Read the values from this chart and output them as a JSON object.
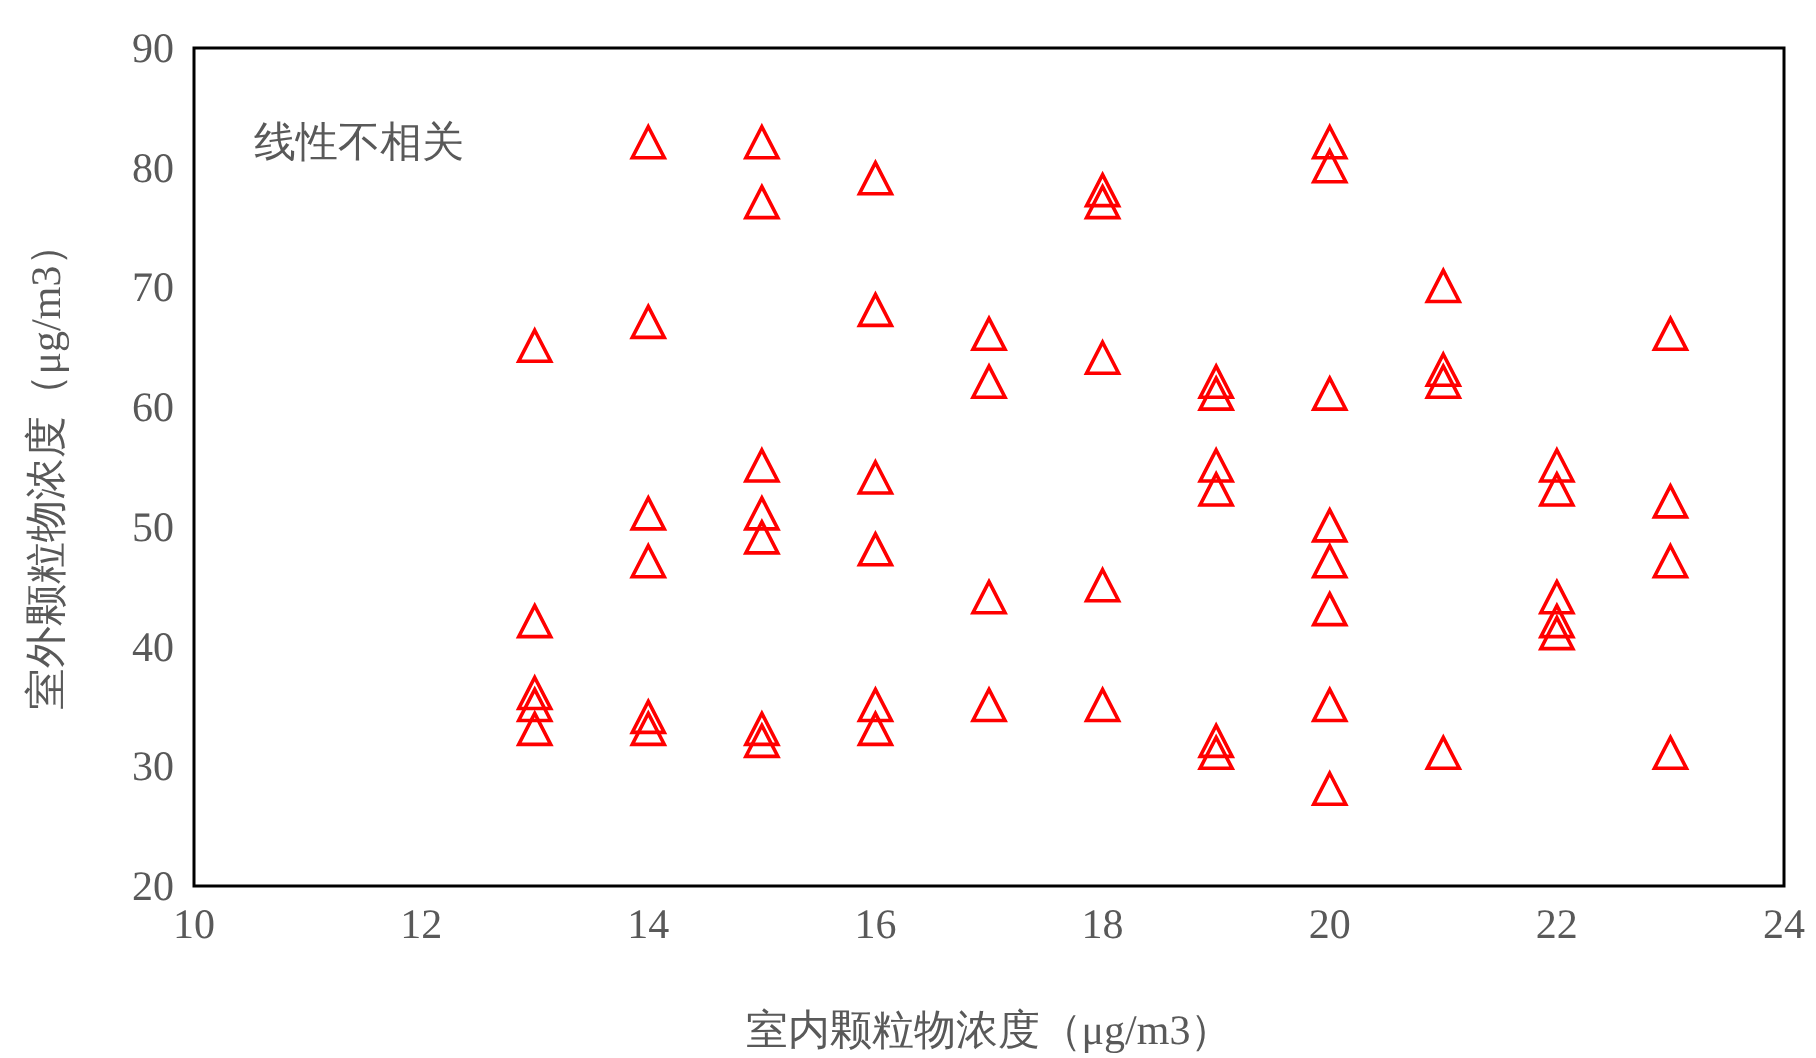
{
  "chart_data": {
    "type": "scatter",
    "xlabel": "室内颗粒物浓度（μg/m3）",
    "ylabel": "室外颗粒物浓度（μg/m3）",
    "annotations": [
      "线性不相关"
    ],
    "xlim": [
      10,
      24
    ],
    "xticks": [
      10,
      12,
      14,
      16,
      18,
      20,
      22,
      24
    ],
    "ylim": [
      20,
      90
    ],
    "yticks": [
      20,
      30,
      40,
      50,
      60,
      70,
      80,
      90
    ],
    "grid": false,
    "marker": "triangle",
    "series": [
      {
        "color": "#ff0000",
        "x": [
          13,
          13,
          13,
          13,
          13,
          14,
          14,
          14,
          14,
          14,
          14,
          15,
          15,
          15,
          15,
          15,
          15,
          15,
          16,
          16,
          16,
          16,
          16,
          16,
          17,
          17,
          17,
          17,
          18,
          18,
          18,
          18,
          18,
          19,
          19,
          19,
          19,
          19,
          19,
          20,
          20,
          20,
          20,
          20,
          20,
          20,
          20,
          21,
          21,
          21,
          21,
          22,
          22,
          22,
          22,
          22,
          23,
          23,
          23,
          23
        ],
        "values": [
          65,
          42,
          36,
          35,
          33,
          82,
          67,
          51,
          47,
          34,
          33,
          82,
          77,
          55,
          51,
          49,
          33,
          32,
          79,
          68,
          54,
          48,
          35,
          33,
          66,
          62,
          44,
          35,
          78,
          77,
          64,
          45,
          35,
          62,
          61,
          55,
          53,
          32,
          31,
          82,
          80,
          61,
          50,
          47,
          43,
          35,
          28,
          70,
          63,
          62,
          31,
          55,
          53,
          44,
          42,
          41,
          66,
          52,
          47,
          31
        ]
      }
    ]
  }
}
